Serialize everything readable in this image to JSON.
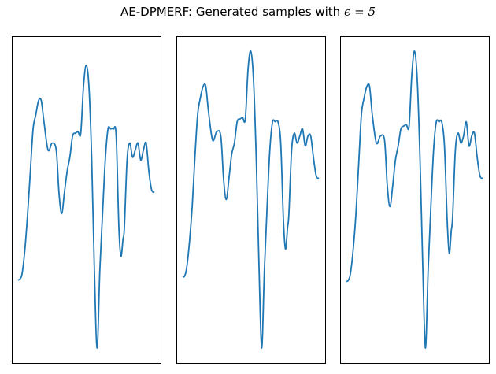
{
  "title": {
    "prefix": "AE-DPMERF: Generated samples with ",
    "math": "ϵ = 5"
  },
  "colors": {
    "line": "#1f77b4",
    "axes": "#000000"
  },
  "chart_data": [
    {
      "type": "line",
      "subplot": 1,
      "grid": false,
      "ticks": "hidden",
      "xlim": [
        0,
        100
      ],
      "ylim": [
        -1.1,
        1.1
      ],
      "x": [
        0,
        1.5,
        3,
        5,
        7,
        9,
        11,
        13,
        15,
        17,
        19,
        22,
        25,
        28,
        30,
        32,
        34,
        36,
        38,
        40,
        42,
        44,
        46,
        48,
        50,
        52,
        54,
        56,
        58,
        60,
        62,
        64,
        66,
        68,
        70,
        72,
        74,
        75.5,
        77,
        78,
        80,
        82,
        84,
        86,
        88,
        90,
        92,
        94,
        96,
        98,
        100
      ],
      "y": [
        -0.57,
        -0.56,
        -0.52,
        -0.35,
        -0.1,
        0.2,
        0.5,
        0.6,
        0.7,
        0.7,
        0.55,
        0.35,
        0.4,
        0.35,
        0.05,
        -0.1,
        0.05,
        0.2,
        0.3,
        0.45,
        0.47,
        0.48,
        0.47,
        0.8,
        0.95,
        0.8,
        0.3,
        -0.5,
        -1.05,
        -0.5,
        -0.1,
        0.28,
        0.5,
        0.5,
        0.5,
        0.45,
        -0.2,
        -0.4,
        -0.28,
        -0.2,
        0.28,
        0.4,
        0.3,
        0.35,
        0.4,
        0.28,
        0.35,
        0.4,
        0.2,
        0.07,
        0.05
      ]
    },
    {
      "type": "line",
      "subplot": 2,
      "grid": false,
      "ticks": "hidden",
      "xlim": [
        0,
        100
      ],
      "ylim": [
        -1.1,
        1.1
      ],
      "x": [
        0,
        1.5,
        3,
        5,
        7,
        9,
        11,
        13,
        15,
        17,
        19,
        22,
        25,
        28,
        30,
        32,
        34,
        36,
        38,
        40,
        42,
        44,
        46,
        48,
        50,
        52,
        54,
        56,
        58,
        60,
        62,
        64,
        66,
        68,
        70,
        72,
        74,
        75.5,
        77,
        78,
        80,
        82,
        84,
        86,
        88,
        90,
        92,
        94,
        96,
        98,
        100
      ],
      "y": [
        -0.55,
        -0.54,
        -0.48,
        -0.3,
        -0.05,
        0.3,
        0.6,
        0.72,
        0.8,
        0.8,
        0.62,
        0.42,
        0.48,
        0.45,
        0.15,
        0.0,
        0.15,
        0.32,
        0.4,
        0.55,
        0.57,
        0.58,
        0.57,
        0.92,
        1.05,
        0.85,
        0.3,
        -0.45,
        -1.05,
        -0.5,
        -0.05,
        0.35,
        0.55,
        0.55,
        0.55,
        0.4,
        -0.15,
        -0.35,
        -0.2,
        -0.1,
        0.35,
        0.47,
        0.4,
        0.45,
        0.5,
        0.38,
        0.45,
        0.45,
        0.3,
        0.17,
        0.15
      ]
    },
    {
      "type": "line",
      "subplot": 3,
      "grid": false,
      "ticks": "hidden",
      "xlim": [
        0,
        100
      ],
      "ylim": [
        -1.1,
        1.1
      ],
      "x": [
        0,
        1.5,
        3,
        5,
        7,
        9,
        11,
        13,
        15,
        17,
        19,
        22,
        25,
        28,
        30,
        32,
        34,
        36,
        38,
        40,
        42,
        44,
        46,
        48,
        50,
        52,
        54,
        56,
        58,
        60,
        62,
        64,
        66,
        68,
        70,
        72,
        74,
        75.5,
        77,
        78,
        80,
        82,
        84,
        86,
        88,
        90,
        92,
        94,
        96,
        98,
        100
      ],
      "y": [
        -0.58,
        -0.57,
        -0.52,
        -0.35,
        -0.1,
        0.25,
        0.6,
        0.72,
        0.8,
        0.8,
        0.6,
        0.4,
        0.45,
        0.42,
        0.1,
        -0.05,
        0.1,
        0.28,
        0.38,
        0.5,
        0.52,
        0.53,
        0.52,
        0.88,
        1.05,
        0.85,
        0.3,
        -0.45,
        -1.05,
        -0.5,
        -0.05,
        0.35,
        0.55,
        0.55,
        0.55,
        0.38,
        -0.15,
        -0.38,
        -0.22,
        -0.12,
        0.35,
        0.47,
        0.4,
        0.45,
        0.55,
        0.38,
        0.45,
        0.47,
        0.3,
        0.17,
        0.15
      ]
    }
  ]
}
